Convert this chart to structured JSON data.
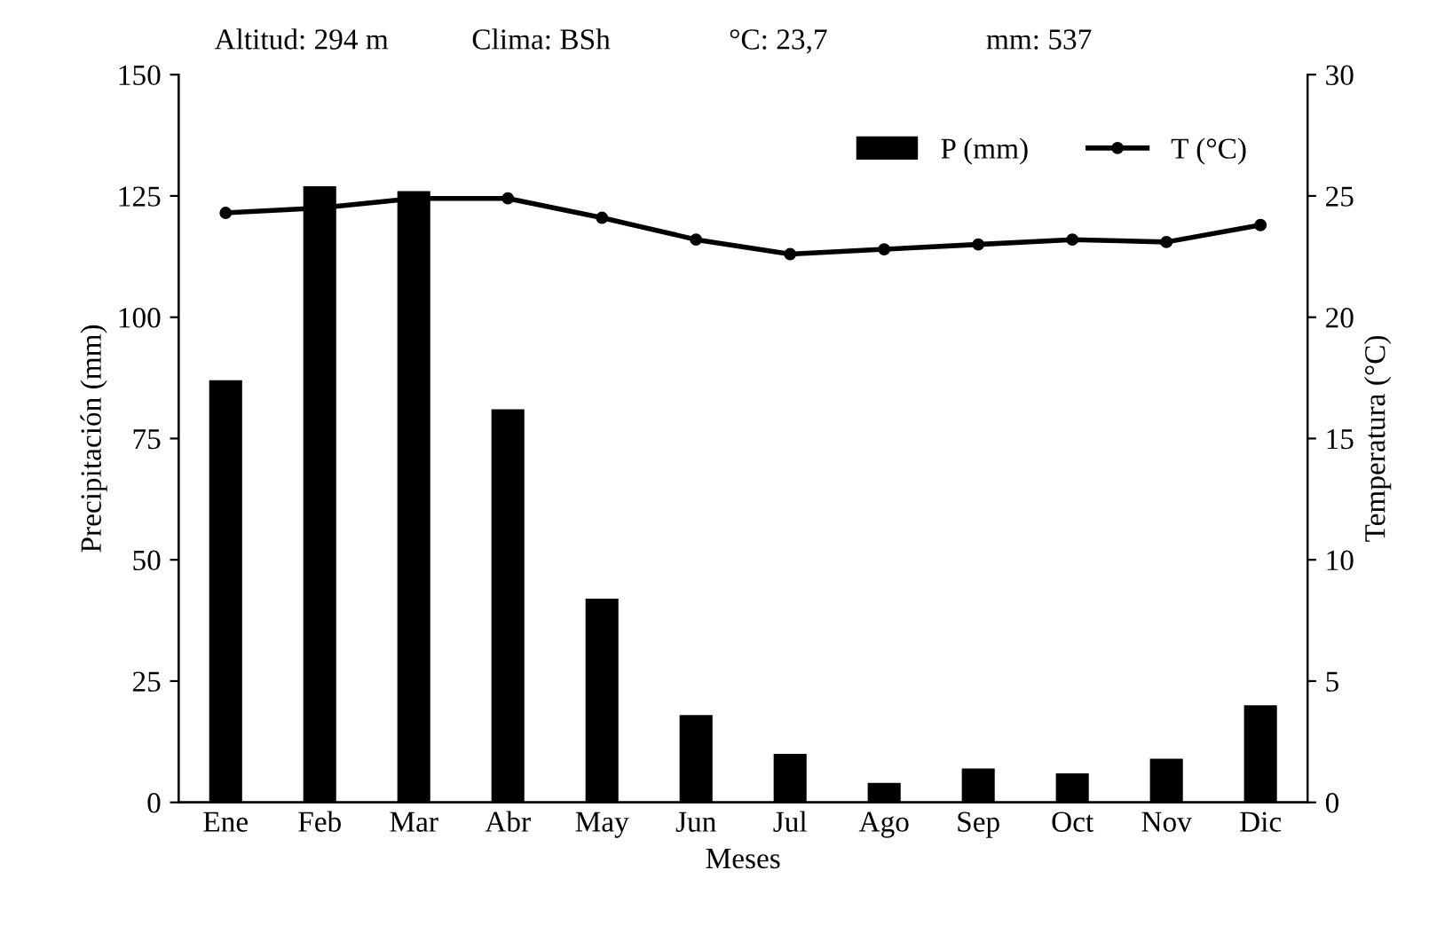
{
  "chart_data": {
    "type": "bar",
    "xlabel": "Meses",
    "ylabel": "Precipitación (mm)",
    "y2label": "Temperatura (°C)",
    "annotations": [
      "Altitud: 294 m",
      "Clima: BSh",
      "°C: 23,7",
      "mm: 537"
    ],
    "categories": [
      "Ene",
      "Feb",
      "Mar",
      "Abr",
      "May",
      "Jun",
      "Jul",
      "Ago",
      "Sep",
      "Oct",
      "Nov",
      "Dic"
    ],
    "series": [
      {
        "name": "P (mm)",
        "color": "#000000",
        "values": [
          87,
          127,
          126,
          81,
          42,
          18,
          10,
          4,
          7,
          6,
          9,
          20
        ]
      },
      {
        "name": "T (°C)",
        "type": "line",
        "axis": "y2",
        "color": "#000000",
        "marker": "circle",
        "line_style": "solid",
        "values": [
          24.3,
          24.5,
          24.9,
          24.9,
          24.1,
          23.2,
          22.6,
          22.8,
          23.0,
          23.2,
          23.1,
          23.8
        ]
      }
    ],
    "ylim": [
      0,
      150
    ],
    "yticks": [
      0,
      25,
      50,
      75,
      100,
      125,
      150
    ],
    "y2lim": [
      0,
      30
    ],
    "y2ticks": [
      0,
      5,
      10,
      15,
      20,
      25,
      30
    ],
    "grid": false,
    "legend": "top right"
  }
}
